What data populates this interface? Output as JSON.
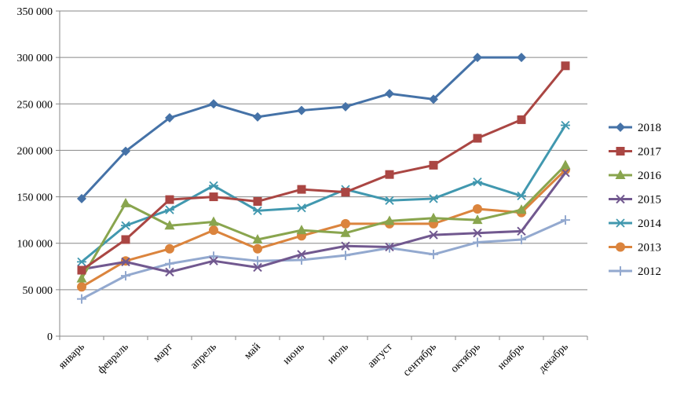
{
  "chart_data": {
    "type": "line",
    "title": "",
    "xlabel": "",
    "ylabel": "",
    "ylim": [
      0,
      350000
    ],
    "yticks": [
      0,
      50000,
      100000,
      150000,
      200000,
      250000,
      300000,
      350000
    ],
    "ytick_labels": [
      "0",
      "50 000",
      "100 000",
      "150 000",
      "200 000",
      "250 000",
      "300 000",
      "350 000"
    ],
    "grid": "horizontal",
    "legend_position": "right",
    "categories": [
      "январь",
      "февраль",
      "март",
      "апрель",
      "май",
      "июнь",
      "июль",
      "август",
      "сентябрь",
      "октябрь",
      "ноябрь",
      "декабрь"
    ],
    "series": [
      {
        "name": "2018",
        "color": "#4572A7",
        "marker": "diamond",
        "values": [
          148000,
          199000,
          235000,
          250000,
          236000,
          243000,
          247000,
          261000,
          255000,
          300000,
          300000,
          null
        ]
      },
      {
        "name": "2017",
        "color": "#AA4643",
        "marker": "square",
        "values": [
          71000,
          104000,
          147000,
          150000,
          145000,
          158000,
          155000,
          174000,
          184000,
          213000,
          233000,
          291000
        ]
      },
      {
        "name": "2016",
        "color": "#89A54E",
        "marker": "triangle",
        "values": [
          62000,
          143000,
          119000,
          123000,
          104000,
          114000,
          111000,
          124000,
          127000,
          125000,
          136000,
          184000
        ]
      },
      {
        "name": "2015",
        "color": "#71588F",
        "marker": "x",
        "values": [
          72000,
          80000,
          69000,
          81000,
          74000,
          88000,
          97000,
          96000,
          109000,
          111000,
          113000,
          176000
        ]
      },
      {
        "name": "2014",
        "color": "#4198AF",
        "marker": "star",
        "values": [
          80000,
          119000,
          136000,
          162000,
          135000,
          138000,
          158000,
          146000,
          148000,
          166000,
          151000,
          227000
        ]
      },
      {
        "name": "2013",
        "color": "#DB843D",
        "marker": "circle",
        "values": [
          53000,
          81000,
          94000,
          114000,
          94000,
          108000,
          121000,
          121000,
          121000,
          137000,
          133000,
          179000
        ]
      },
      {
        "name": "2012",
        "color": "#93A9CF",
        "marker": "plus",
        "values": [
          40000,
          65000,
          78000,
          86000,
          81000,
          82000,
          87000,
          95000,
          88000,
          101000,
          104000,
          125000
        ]
      }
    ]
  }
}
